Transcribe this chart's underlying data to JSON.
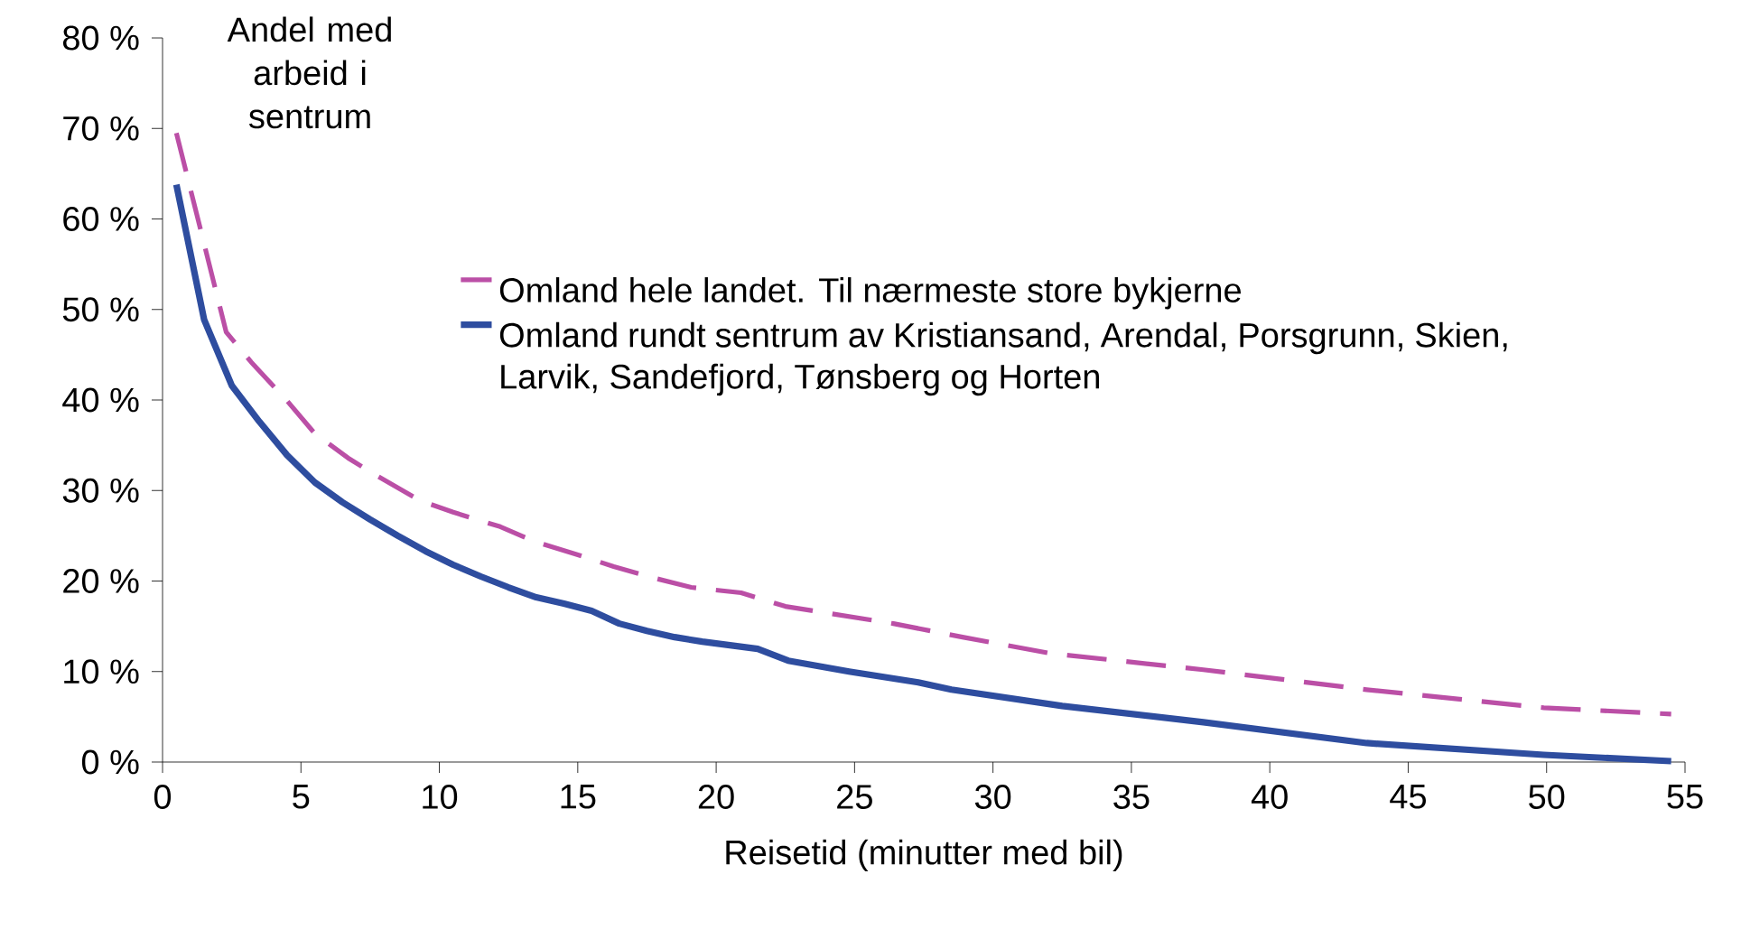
{
  "chart_data": {
    "type": "line",
    "ylabel": "Andel med arbeid i sentrum",
    "xlabel": "Reisetid (minutter med bil)",
    "xlim": [
      0,
      55
    ],
    "xticks": [
      0,
      5,
      10,
      15,
      20,
      25,
      30,
      35,
      40,
      45,
      50,
      55
    ],
    "ylim": [
      0,
      80
    ],
    "yticks": [
      {
        "value": 0,
        "label": "0 %"
      },
      {
        "value": 10,
        "label": "10 %"
      },
      {
        "value": 20,
        "label": "20 %"
      },
      {
        "value": 30,
        "label": "30 %"
      },
      {
        "value": 40,
        "label": "40 %"
      },
      {
        "value": 50,
        "label": "50 %"
      },
      {
        "value": 60,
        "label": "60 %"
      },
      {
        "value": 70,
        "label": "70 %"
      },
      {
        "value": 80,
        "label": "80 %"
      }
    ],
    "grid": false,
    "legend": "right",
    "series": [
      {
        "name": "Omland hele landet. Til nærmeste store bykjerne",
        "color": "#bb4fa6",
        "line_style": "dashed",
        "x": [
          0.5,
          2.3,
          3.2,
          4.5,
          5.5,
          6.7,
          7.7,
          9.3,
          10.5,
          12.2,
          13.5,
          14.9,
          16.3,
          17.8,
          19.1,
          20.9,
          22.5,
          26.4,
          28.9,
          32.1,
          37.6,
          43.5,
          49.9,
          54.5
        ],
        "values": [
          69.5,
          47.5,
          44.2,
          39.9,
          36.3,
          33.6,
          31.7,
          28.9,
          27.6,
          26.0,
          24.3,
          23.0,
          21.6,
          20.3,
          19.3,
          18.7,
          17.2,
          15.3,
          13.8,
          12.0,
          10.2,
          8.0,
          6.0,
          5.3
        ]
      },
      {
        "name": "Omland rundt sentrum av Kristiansand, Arendal, Porsgrunn, Skien, Larvik, Sandefjord, Tønsberg og Horten",
        "color": "#2e4d9f",
        "line_style": "solid",
        "x": [
          0.5,
          1.5,
          2.5,
          3.5,
          4.5,
          5.5,
          6.5,
          7.5,
          8.5,
          9.5,
          10.5,
          11.5,
          12.5,
          13.5,
          14.5,
          15.5,
          16.5,
          17.5,
          18.5,
          19.5,
          21.5,
          22.6,
          24.8,
          27.3,
          28.5,
          32.5,
          37.6,
          43.5,
          49.9,
          54.5
        ],
        "values": [
          63.8,
          48.9,
          41.6,
          37.6,
          33.9,
          30.9,
          28.7,
          26.8,
          25.0,
          23.3,
          21.8,
          20.5,
          19.3,
          18.2,
          17.5,
          16.7,
          15.3,
          14.5,
          13.8,
          13.3,
          12.5,
          11.2,
          10.0,
          8.8,
          8.0,
          6.2,
          4.4,
          2.1,
          0.8,
          0.1
        ]
      }
    ]
  }
}
